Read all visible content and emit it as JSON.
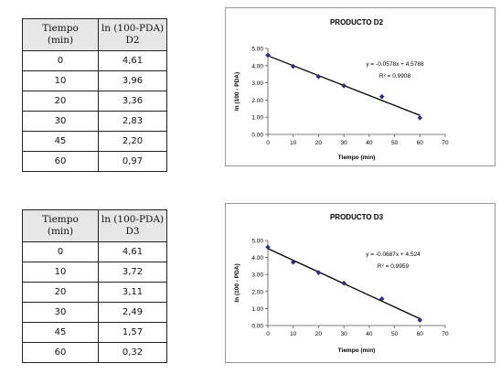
{
  "tables": [
    {
      "headers": [
        [
          "Tiempo",
          "(min)"
        ],
        [
          "ln (100-PDA)",
          "D2"
        ]
      ],
      "rows": [
        [
          "0",
          "4,61"
        ],
        [
          "10",
          "3,96"
        ],
        [
          "20",
          "3,36"
        ],
        [
          "30",
          "2,83"
        ],
        [
          "45",
          "2,20"
        ],
        [
          "60",
          "0,97"
        ]
      ]
    },
    {
      "headers": [
        [
          "Tiempo",
          "(min)"
        ],
        [
          "ln (100-PDA)",
          "D3"
        ]
      ],
      "rows": [
        [
          "0",
          "4,61"
        ],
        [
          "10",
          "3,72"
        ],
        [
          "20",
          "3,11"
        ],
        [
          "30",
          "2,49"
        ],
        [
          "45",
          "1,57"
        ],
        [
          "60",
          "0,32"
        ]
      ]
    }
  ],
  "chart_data": [
    {
      "type": "scatter",
      "title": "PRODUCTO D2",
      "xlabel": "Tiempo (min)",
      "ylabel": "ln (100 - PDA)",
      "xlim": [
        0,
        70
      ],
      "ylim": [
        0,
        5
      ],
      "x_ticks": [
        "0",
        "10",
        "20",
        "30",
        "40",
        "50",
        "60",
        "70"
      ],
      "y_ticks": [
        "0.00",
        "1.00",
        "2.00",
        "3.00",
        "4.00",
        "5.00"
      ],
      "x": [
        0,
        10,
        20,
        30,
        45,
        60
      ],
      "y": [
        4.61,
        3.96,
        3.36,
        2.83,
        2.2,
        0.97
      ],
      "trendline": {
        "slope": -0.0578,
        "intercept": 4.5788,
        "equation": "y = -0.0578x + 4.5788",
        "r2": "R² = 0.9908"
      },
      "marker_color": "#2b2e7a",
      "line_color": "#000000"
    },
    {
      "type": "scatter",
      "title": "PRODUCTO D3",
      "xlabel": "Tiempo (min)",
      "ylabel": "ln (100 - PDA)",
      "xlim": [
        0,
        70
      ],
      "ylim": [
        0,
        5
      ],
      "x_ticks": [
        "0",
        "10",
        "20",
        "30",
        "40",
        "50",
        "60",
        "70"
      ],
      "y_ticks": [
        "0.00",
        "1.00",
        "2.00",
        "3.00",
        "4.00",
        "5.00"
      ],
      "x": [
        0,
        10,
        20,
        30,
        45,
        60
      ],
      "y": [
        4.61,
        3.72,
        3.11,
        2.49,
        1.57,
        0.32
      ],
      "trendline": {
        "slope": -0.0687,
        "intercept": 4.524,
        "equation": "y = -0.0687x + 4.524",
        "r2": "R² = 0.9959"
      },
      "marker_color": "#2b2e7a",
      "line_color": "#000000"
    }
  ]
}
